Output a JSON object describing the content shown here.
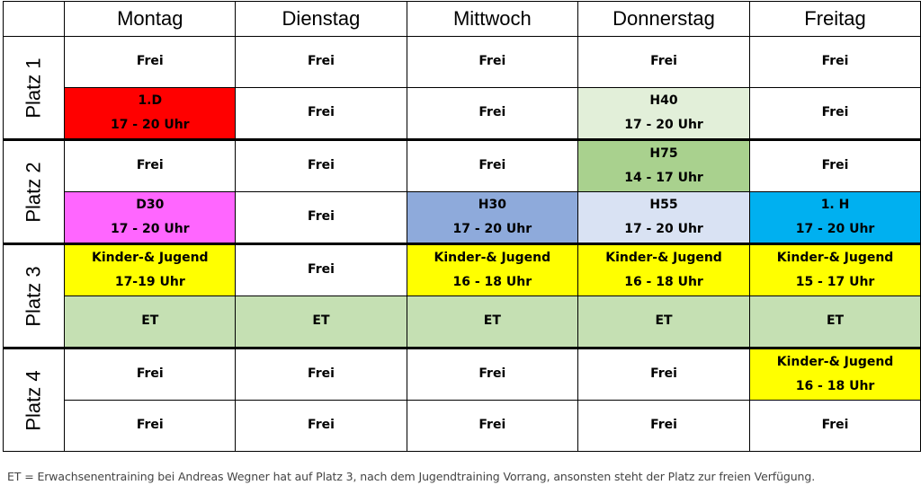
{
  "days": [
    "Montag",
    "Dienstag",
    "Mittwoch",
    "Donnerstag",
    "Freitag"
  ],
  "places": [
    "Platz 1",
    "Platz 2",
    "Platz 3",
    "Platz 4"
  ],
  "colors": {
    "red": "#ff0000",
    "light_green": "#e2efd9",
    "green": "#a9d18e",
    "magenta": "#ff66ff",
    "blue_grey": "#8eaadb",
    "pale_blue": "#d9e2f3",
    "cyan_blue": "#00b0f0",
    "yellow": "#ffff00",
    "sage": "#c5e0b3",
    "white": "#ffffff"
  },
  "rows": [
    {
      "cells": [
        {
          "lines": [
            "Frei"
          ],
          "color": "white"
        },
        {
          "lines": [
            "Frei"
          ],
          "color": "white"
        },
        {
          "lines": [
            "Frei"
          ],
          "color": "white"
        },
        {
          "lines": [
            "Frei"
          ],
          "color": "white"
        },
        {
          "lines": [
            "Frei"
          ],
          "color": "white"
        }
      ]
    },
    {
      "cells": [
        {
          "lines": [
            "1.D",
            "17 - 20 Uhr"
          ],
          "color": "red"
        },
        {
          "lines": [
            "Frei"
          ],
          "color": "white"
        },
        {
          "lines": [
            "Frei"
          ],
          "color": "white"
        },
        {
          "lines": [
            "H40",
            "17 - 20 Uhr"
          ],
          "color": "light_green"
        },
        {
          "lines": [
            "Frei"
          ],
          "color": "white"
        }
      ]
    },
    {
      "cells": [
        {
          "lines": [
            "Frei"
          ],
          "color": "white"
        },
        {
          "lines": [
            "Frei"
          ],
          "color": "white"
        },
        {
          "lines": [
            "Frei"
          ],
          "color": "white"
        },
        {
          "lines": [
            "H75",
            "14 - 17 Uhr"
          ],
          "color": "green"
        },
        {
          "lines": [
            "Frei"
          ],
          "color": "white"
        }
      ]
    },
    {
      "cells": [
        {
          "lines": [
            "D30",
            "17 - 20 Uhr"
          ],
          "color": "magenta"
        },
        {
          "lines": [
            "Frei"
          ],
          "color": "white"
        },
        {
          "lines": [
            "H30",
            "17 - 20 Uhr"
          ],
          "color": "blue_grey"
        },
        {
          "lines": [
            "H55",
            "17 - 20 Uhr"
          ],
          "color": "pale_blue"
        },
        {
          "lines": [
            "1. H",
            "17 - 20 Uhr"
          ],
          "color": "cyan_blue"
        }
      ]
    },
    {
      "cells": [
        {
          "lines": [
            "Kinder-& Jugend",
            "17-19 Uhr"
          ],
          "color": "yellow"
        },
        {
          "lines": [
            "Frei"
          ],
          "color": "white"
        },
        {
          "lines": [
            "Kinder-& Jugend",
            "16 - 18 Uhr"
          ],
          "color": "yellow"
        },
        {
          "lines": [
            "Kinder-& Jugend",
            "16 - 18 Uhr"
          ],
          "color": "yellow"
        },
        {
          "lines": [
            "Kinder-& Jugend",
            "15 - 17 Uhr"
          ],
          "color": "yellow"
        }
      ]
    },
    {
      "cells": [
        {
          "lines": [
            "ET"
          ],
          "color": "sage"
        },
        {
          "lines": [
            "ET"
          ],
          "color": "sage"
        },
        {
          "lines": [
            "ET"
          ],
          "color": "sage"
        },
        {
          "lines": [
            "ET"
          ],
          "color": "sage"
        },
        {
          "lines": [
            "ET"
          ],
          "color": "sage"
        }
      ]
    },
    {
      "cells": [
        {
          "lines": [
            "Frei"
          ],
          "color": "white"
        },
        {
          "lines": [
            "Frei"
          ],
          "color": "white"
        },
        {
          "lines": [
            "Frei"
          ],
          "color": "white"
        },
        {
          "lines": [
            "Frei"
          ],
          "color": "white"
        },
        {
          "lines": [
            "Kinder-& Jugend",
            "16 - 18 Uhr"
          ],
          "color": "yellow"
        }
      ]
    },
    {
      "cells": [
        {
          "lines": [
            "Frei"
          ],
          "color": "white"
        },
        {
          "lines": [
            "Frei"
          ],
          "color": "white"
        },
        {
          "lines": [
            "Frei"
          ],
          "color": "white"
        },
        {
          "lines": [
            "Frei"
          ],
          "color": "white"
        },
        {
          "lines": [
            "Frei"
          ],
          "color": "white"
        }
      ]
    }
  ],
  "footnote": "ET = Erwachsenentraining bei Andreas Wegner hat auf Platz 3, nach dem Jugendtraining Vorrang, ansonsten steht der Platz zur freien Verfügung."
}
